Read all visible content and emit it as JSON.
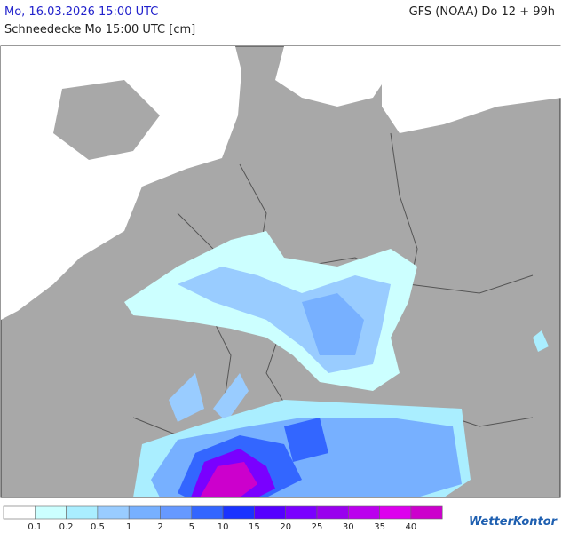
{
  "header": {
    "datetime": "Mo, 16.03.2026 15:00 UTC",
    "model": "GFS (NOAA) Do 12 + 99h",
    "subtitle": "Schneedecke Mo 15:00 UTC [cm]"
  },
  "legend": {
    "colors": [
      "#ffffff",
      "#ccffff",
      "#aaeeff",
      "#99ccff",
      "#77b0ff",
      "#6699ff",
      "#3366ff",
      "#1a33ff",
      "#5500ff",
      "#7a00ff",
      "#9900ee",
      "#bb00ee",
      "#dd00ee",
      "#cc00cc"
    ],
    "labels": [
      "0.1",
      "0.2",
      "0.5",
      "1",
      "2",
      "5",
      "10",
      "15",
      "20",
      "25",
      "30",
      "35",
      "40"
    ]
  },
  "logo": "WetterKontor"
}
